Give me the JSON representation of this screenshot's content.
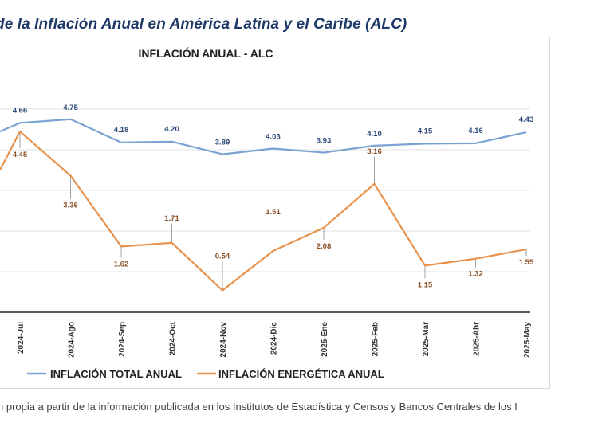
{
  "page": {
    "heading": "de la Inflación Anual en América Latina y el Caribe (ALC)",
    "source_note": "n propia a partir de la información publicada en los Institutos de Estadística y Censos y Bancos Centrales de los I"
  },
  "colors": {
    "total": "#7aa3d4",
    "energy": "#e8914a",
    "total_label": "#2f4a7a",
    "energy_label": "#8a5228",
    "grid": "#e3e3e3",
    "axis": "#222222"
  },
  "chart_data": {
    "type": "line",
    "title": "INFLACIÓN ANUAL - ALC",
    "xlabel": "",
    "ylabel": "",
    "categories": [
      "2024-Jul",
      "2024-Ago",
      "2024-Sep",
      "2024-Oct",
      "2024-Nov",
      "2024-Dic",
      "2025-Ene",
      "2025-Feb",
      "2025-Mar",
      "2025-Abr",
      "2025-May"
    ],
    "series": [
      {
        "name": "INFLACIÓN TOTAL ANUAL",
        "values": [
          4.66,
          4.75,
          4.18,
          4.2,
          3.89,
          4.03,
          3.93,
          4.1,
          4.15,
          4.16,
          4.43
        ],
        "labels": [
          "4.66",
          "4.75",
          "4.18",
          "4.20",
          "3.89",
          "4.03",
          "3.93",
          "4.10",
          "4.15",
          "4.16",
          "4.43"
        ],
        "prior_value": 4.45
      },
      {
        "name": "INFLACIÓN ENERGÉTICA ANUAL",
        "values": [
          4.45,
          3.36,
          1.62,
          1.71,
          0.54,
          1.51,
          2.08,
          3.16,
          1.15,
          1.32,
          1.55
        ],
        "labels": [
          "4.45",
          "3.36",
          "1.62",
          "1.71",
          "0.54",
          "1.51",
          "2.08",
          "3.16",
          "1.15",
          "1.32",
          "1.55"
        ],
        "prior_value": 3.5
      }
    ],
    "ylim": [
      0,
      6
    ],
    "grid": true,
    "legend": "bottom-left"
  }
}
